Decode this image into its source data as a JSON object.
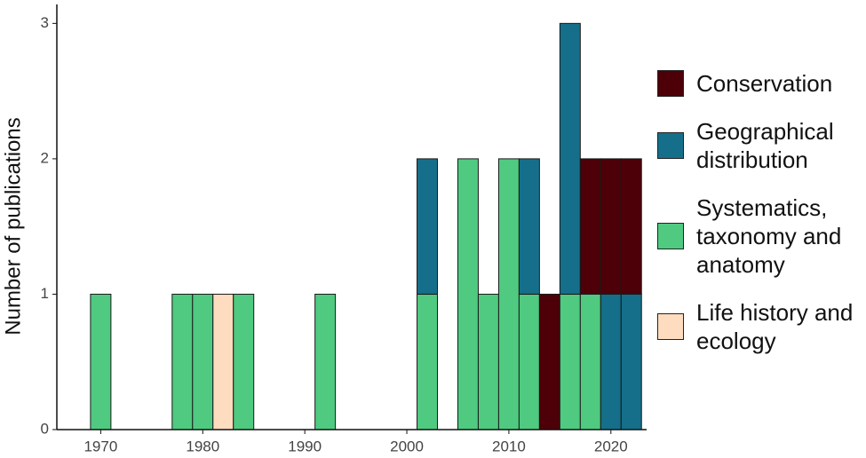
{
  "chart_data": {
    "type": "histogram",
    "y_label": "Number of publications",
    "bins": [
      1969,
      1971,
      1973,
      1975,
      1977,
      1979,
      1981,
      1983,
      1985,
      1987,
      1989,
      1991,
      1993,
      1995,
      1997,
      1999,
      2001,
      2003,
      2005,
      2007,
      2009,
      2011,
      2013,
      2015,
      2017,
      2019,
      2021,
      2023
    ],
    "series": [
      {
        "name": "Systematics, taxonomy and anatomy",
        "color": "#4fca80",
        "values": [
          1,
          0,
          0,
          0,
          1,
          1,
          0,
          1,
          0,
          0,
          0,
          1,
          0,
          0,
          0,
          0,
          1,
          0,
          2,
          1,
          2,
          1,
          0,
          1,
          1,
          0,
          0
        ]
      },
      {
        "name": "Life history and ecology",
        "color": "#fddcc0",
        "values": [
          0,
          0,
          0,
          0,
          0,
          0,
          1,
          0,
          0,
          0,
          0,
          0,
          0,
          0,
          0,
          0,
          0,
          0,
          0,
          0,
          0,
          0,
          0,
          0,
          0,
          0,
          0
        ]
      },
      {
        "name": "Geographical distribution",
        "color": "#156f8a",
        "values": [
          0,
          0,
          0,
          0,
          0,
          0,
          0,
          0,
          0,
          0,
          0,
          0,
          0,
          0,
          0,
          0,
          1,
          0,
          0,
          0,
          0,
          1,
          0,
          2,
          0,
          1,
          1
        ]
      },
      {
        "name": "Conservation",
        "color": "#4d0008",
        "values": [
          0,
          0,
          0,
          0,
          0,
          0,
          0,
          0,
          0,
          0,
          0,
          0,
          0,
          0,
          0,
          0,
          0,
          0,
          0,
          0,
          0,
          0,
          1,
          0,
          1,
          1,
          1
        ]
      }
    ],
    "legend_order": [
      3,
      2,
      0,
      1
    ],
    "xlim": [
      1965.7,
      2023.5
    ],
    "xticks": [
      1970,
      1980,
      1990,
      2000,
      2010,
      2020
    ],
    "ylim": [
      0,
      3.14
    ],
    "yticks": [
      0,
      1,
      2,
      3
    ]
  }
}
